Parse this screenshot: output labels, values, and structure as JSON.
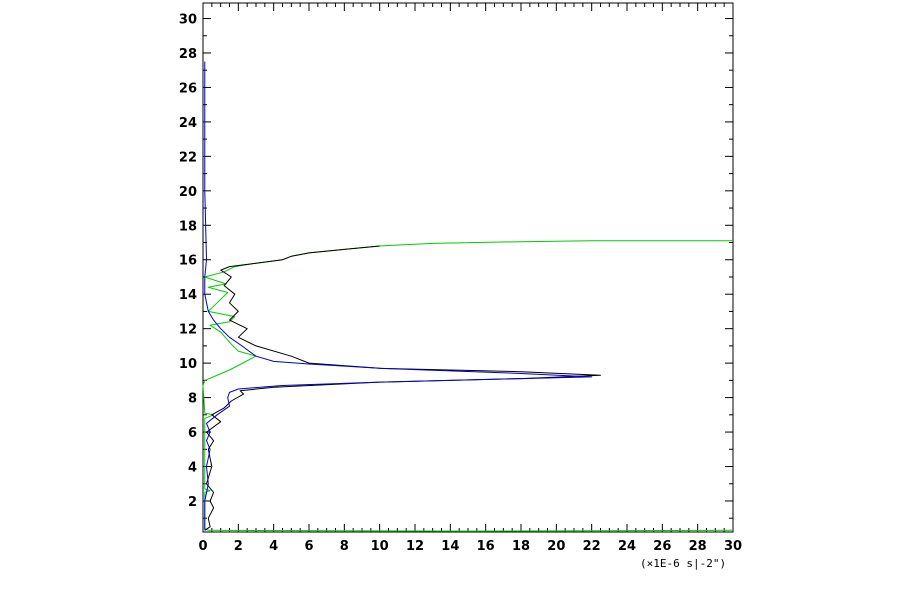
{
  "chart_data": {
    "type": "line",
    "title": "",
    "xlabel": "",
    "ylabel": "",
    "unit_label": "(×1E-6 s|-2\")",
    "xlim": [
      0,
      30
    ],
    "ylim": [
      0.2,
      30.9
    ],
    "xticks": [
      0,
      2,
      4,
      6,
      8,
      10,
      12,
      14,
      16,
      18,
      20,
      22,
      24,
      26,
      28,
      30
    ],
    "yticks": [
      2,
      4,
      6,
      8,
      10,
      12,
      14,
      16,
      18,
      20,
      22,
      24,
      26,
      28,
      30
    ],
    "grid": false,
    "legend": "none",
    "series": [
      {
        "color": "#00cc00",
        "points": [
          [
            30,
            0.3
          ],
          [
            15,
            0.25
          ],
          [
            0.3,
            0.3
          ],
          [
            0.1,
            0.4
          ],
          [
            0.1,
            2.5
          ],
          [
            0.4,
            2.6
          ],
          [
            0.1,
            2.7
          ],
          [
            0.1,
            6.8
          ],
          [
            0.6,
            7.0
          ],
          [
            0.1,
            7.1
          ],
          [
            0,
            8.7
          ],
          [
            0.1,
            9.0
          ],
          [
            1.5,
            9.6
          ],
          [
            3.0,
            10.4
          ],
          [
            2.0,
            10.7
          ],
          [
            1.6,
            11.1
          ],
          [
            1.0,
            11.8
          ],
          [
            0.4,
            12.2
          ],
          [
            1.5,
            12.4
          ],
          [
            1.8,
            12.7
          ],
          [
            0.3,
            13.0
          ],
          [
            0.8,
            13.5
          ],
          [
            1.4,
            14.1
          ],
          [
            0.3,
            14.4
          ],
          [
            1.3,
            14.6
          ],
          [
            0.1,
            15.0
          ],
          [
            1.2,
            15.3
          ],
          [
            1.8,
            15.6
          ],
          [
            3.0,
            15.8
          ],
          [
            4.5,
            16.0
          ],
          [
            5.0,
            16.2
          ],
          [
            6.0,
            16.4
          ],
          [
            8.0,
            16.6
          ],
          [
            10.0,
            16.8
          ],
          [
            13.0,
            16.95
          ],
          [
            18.0,
            17.05
          ],
          [
            22.0,
            17.1
          ],
          [
            30.0,
            17.1
          ]
        ]
      },
      {
        "color": "#000000",
        "points": [
          [
            0.1,
            0.3
          ],
          [
            0.4,
            0.5
          ],
          [
            0.3,
            1.0
          ],
          [
            0.6,
            1.6
          ],
          [
            0.4,
            2.0
          ],
          [
            0.6,
            2.5
          ],
          [
            0.2,
            3.0
          ],
          [
            0.5,
            4.0
          ],
          [
            0.3,
            5.0
          ],
          [
            0.6,
            5.5
          ],
          [
            0.2,
            6.0
          ],
          [
            1.0,
            6.6
          ],
          [
            0.5,
            7.0
          ],
          [
            1.2,
            7.4
          ],
          [
            1.6,
            7.8
          ],
          [
            2.3,
            8.2
          ],
          [
            2.1,
            8.4
          ],
          [
            4.0,
            8.6
          ],
          [
            10.0,
            8.9
          ],
          [
            18.0,
            9.1
          ],
          [
            22.5,
            9.3
          ],
          [
            18.0,
            9.5
          ],
          [
            10.0,
            9.7
          ],
          [
            6.0,
            10.0
          ],
          [
            5.0,
            10.4
          ],
          [
            3.0,
            11.0
          ],
          [
            2.0,
            11.5
          ],
          [
            2.5,
            12.0
          ],
          [
            1.5,
            12.5
          ],
          [
            2.0,
            13.0
          ],
          [
            1.5,
            13.5
          ],
          [
            1.8,
            14.0
          ],
          [
            1.2,
            14.5
          ],
          [
            1.6,
            15.0
          ],
          [
            1.0,
            15.4
          ],
          [
            1.5,
            15.6
          ],
          [
            3.0,
            15.8
          ],
          [
            4.5,
            16.0
          ],
          [
            5.0,
            16.2
          ],
          [
            6.0,
            16.4
          ],
          [
            8.0,
            16.6
          ],
          [
            10.0,
            16.8
          ]
        ]
      },
      {
        "color": "#0000cc",
        "points": [
          [
            0.1,
            0.3
          ],
          [
            0.1,
            2.0
          ],
          [
            0.3,
            3.0
          ],
          [
            0.2,
            4.0
          ],
          [
            0.4,
            5.0
          ],
          [
            0.2,
            5.5
          ],
          [
            0.4,
            6.0
          ],
          [
            0.2,
            6.5
          ],
          [
            0.8,
            7.0
          ],
          [
            1.5,
            7.5
          ],
          [
            1.4,
            8.0
          ],
          [
            1.5,
            8.3
          ],
          [
            2.0,
            8.5
          ],
          [
            4.5,
            8.7
          ],
          [
            10.0,
            8.9
          ],
          [
            18.0,
            9.1
          ],
          [
            22.0,
            9.2
          ],
          [
            18.0,
            9.4
          ],
          [
            10.0,
            9.7
          ],
          [
            6.0,
            9.95
          ],
          [
            4.0,
            10.1
          ],
          [
            3.0,
            10.4
          ],
          [
            2.2,
            11.0
          ],
          [
            1.5,
            11.5
          ],
          [
            1.0,
            12.0
          ],
          [
            0.6,
            12.5
          ],
          [
            0.3,
            13.0
          ],
          [
            0.1,
            14.0
          ],
          [
            0.1,
            15.0
          ],
          [
            0.2,
            16.0
          ],
          [
            0.1,
            20.0
          ],
          [
            0.1,
            24.0
          ],
          [
            0.1,
            27.5
          ]
        ]
      }
    ]
  }
}
